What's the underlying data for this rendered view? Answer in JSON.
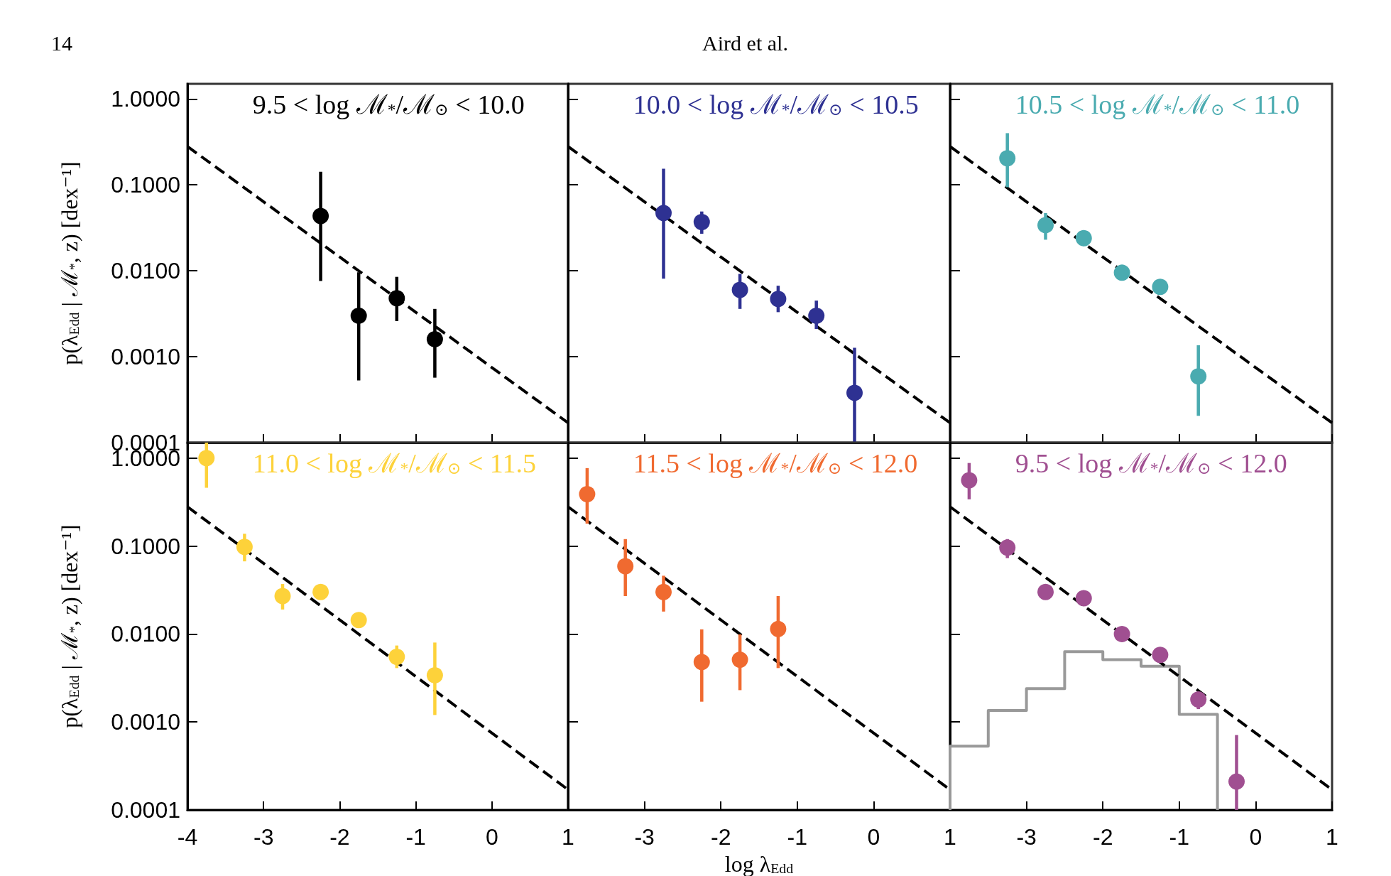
{
  "chart_data": [
    {
      "type": "scatter",
      "title": "9.5 < log ℳ$_{*}$/ℳ$_{⊙}$ < 10.0",
      "ylabel": "p(λ$_{Edd}$ | ℳ$_{*}$, z) [dex⁻¹]",
      "annotations": [
        "14",
        "Aird et al."
      ],
      "xlim": [
        -4,
        1
      ],
      "xticks": [
        -4,
        -3,
        -2,
        -1,
        0,
        1
      ],
      "ylim": [
        0.0001,
        1.5
      ],
      "yticks": [
        {
          "value": 1,
          "label": "1.0000"
        },
        {
          "value": 0.1,
          "label": "0.1000"
        },
        {
          "value": 0.01,
          "label": "0.0100"
        },
        {
          "value": 0.001,
          "label": "0.0010"
        },
        {
          "value": 0.0001,
          "label": "0.0001"
        }
      ],
      "log": "y",
      "grid": false,
      "marker": "circle",
      "tick_labels": "y",
      "series": [
        {
          "color": "#000000",
          "x": [
            -2.25,
            -1.75,
            -1.25,
            -0.75
          ],
          "values": [
            0.0435,
            0.003,
            0.0048,
            0.0016
          ],
          "errors": [
            [
              0.0076,
              0.142
            ],
            [
              0.00053,
              0.0096
            ],
            [
              0.0026,
              0.0085
            ],
            [
              0.00057,
              0.0036
            ]
          ]
        },
        {
          "type": "line",
          "color": "#000000",
          "line_style": "dashed",
          "marker": "none",
          "x": [
            -4,
            1
          ],
          "values": [
            0.28,
            0.00017
          ]
        }
      ]
    },
    {
      "type": "scatter",
      "title": "10.0 < log ℳ$_{*}$/ℳ$_{⊙}$ < 10.5",
      "xlim": [
        -4,
        1
      ],
      "xticks": [
        -4,
        -3,
        -2,
        -1,
        0,
        1
      ],
      "ylim": [
        0.0001,
        1.5
      ],
      "yticks": [
        1,
        0.1,
        0.01,
        0.001,
        0.0001
      ],
      "log": "y",
      "grid": false,
      "marker": "circle",
      "tick_labels": false,
      "series": [
        {
          "color": "#2e3192",
          "x": [
            -2.75,
            -2.25,
            -1.75,
            -1.25,
            -0.75,
            -0.25
          ],
          "values": [
            0.047,
            0.037,
            0.006,
            0.0047,
            0.003,
            0.00038
          ],
          "errors": [
            [
              0.0081,
              0.154
            ],
            [
              0.027,
              0.049
            ],
            [
              0.0036,
              0.0092
            ],
            [
              0.0033,
              0.0067
            ],
            [
              0.0021,
              0.0045
            ],
            [
              0.0001,
              0.00127
            ]
          ]
        },
        {
          "type": "line",
          "color": "#000000",
          "line_style": "dashed",
          "marker": "none",
          "x": [
            -4,
            1
          ],
          "values": [
            0.28,
            0.00017
          ]
        }
      ]
    },
    {
      "type": "scatter",
      "title": "10.5 < log ℳ$_{*}$/ℳ$_{⊙}$ < 11.0",
      "xlim": [
        -4,
        1
      ],
      "xticks": [
        -4,
        -3,
        -2,
        -1,
        0,
        1
      ],
      "ylim": [
        0.0001,
        1.5
      ],
      "yticks": [
        1,
        0.1,
        0.01,
        0.001,
        0.0001
      ],
      "log": "y",
      "grid": false,
      "marker": "circle",
      "tick_labels": false,
      "series": [
        {
          "color": "#4aabb0",
          "x": [
            -3.25,
            -2.75,
            -2.25,
            -1.75,
            -1.25,
            -0.75
          ],
          "values": [
            0.204,
            0.034,
            0.024,
            0.0095,
            0.0065,
            0.00059
          ],
          "errors": [
            [
              0.094,
              0.4
            ],
            [
              0.023,
              0.047
            ],
            null,
            null,
            null,
            [
              0.000205,
              0.00136
            ]
          ]
        },
        {
          "type": "line",
          "color": "#000000",
          "line_style": "dashed",
          "marker": "none",
          "x": [
            -4,
            1
          ],
          "values": [
            0.28,
            0.00017
          ]
        }
      ]
    },
    {
      "type": "scatter",
      "title": "11.0 < log ℳ$_{*}$/ℳ$_{⊙}$ < 11.5",
      "ylabel": "p(λ$_{Edd}$ | ℳ$_{*}$, z) [dex⁻¹]",
      "xlim": [
        -4,
        1
      ],
      "xticks": [
        -4,
        -3,
        -2,
        -1,
        0,
        1
      ],
      "ylim": [
        0.0001,
        1.5
      ],
      "yticks": [
        {
          "value": 1,
          "label": "1.0000"
        },
        {
          "value": 0.1,
          "label": "0.1000"
        },
        {
          "value": 0.01,
          "label": "0.0100"
        },
        {
          "value": 0.001,
          "label": "0.0010"
        },
        {
          "value": 0.0001,
          "label": "0.0001"
        }
      ],
      "log": "y",
      "grid": false,
      "marker": "circle",
      "series": [
        {
          "color": "#fdd23a",
          "x": [
            -3.75,
            -3.25,
            -2.75,
            -2.25,
            -1.75,
            -1.25,
            -0.75
          ],
          "values": [
            1.0,
            0.098,
            0.027,
            0.03,
            0.0144,
            0.0055,
            0.0034
          ],
          "errors": [
            [
              0.46,
              1.5
            ],
            [
              0.067,
              0.138
            ],
            [
              0.019,
              0.037
            ],
            null,
            null,
            [
              0.0041,
              0.0074
            ],
            [
              0.0012,
              0.008
            ]
          ]
        },
        {
          "type": "line",
          "color": "#000000",
          "line_style": "dashed",
          "marker": "none",
          "x": [
            -4,
            1
          ],
          "values": [
            0.28,
            0.00017
          ]
        }
      ]
    },
    {
      "type": "scatter",
      "title": "11.5 < log ℳ$_{*}$/ℳ$_{⊙}$ < 12.0",
      "xlabel": "log λ$_{Edd}$",
      "xlim": [
        -4,
        1
      ],
      "xticks": [
        {
          "value": -4,
          "label": null
        },
        -3,
        -2,
        -1,
        0,
        1
      ],
      "ylim": [
        0.0001,
        1.5
      ],
      "yticks": [
        1,
        0.1,
        0.01,
        0.001,
        0.0001
      ],
      "log": "y",
      "grid": false,
      "marker": "circle",
      "tick_labels": "x",
      "series": [
        {
          "color": "#f06a30",
          "x": [
            -3.75,
            -3.25,
            -2.75,
            -2.25,
            -1.75,
            -1.25
          ],
          "values": [
            0.39,
            0.059,
            0.03,
            0.0048,
            0.0051,
            0.0114
          ],
          "errors": [
            [
              0.18,
              0.77
            ],
            [
              0.027,
              0.12
            ],
            [
              0.018,
              0.046
            ],
            [
              0.0017,
              0.0113
            ],
            [
              0.0023,
              0.0099
            ],
            [
              0.0041,
              0.027
            ]
          ]
        },
        {
          "type": "line",
          "color": "#000000",
          "line_style": "dashed",
          "marker": "none",
          "x": [
            -4,
            1
          ],
          "values": [
            0.28,
            0.00017
          ]
        }
      ]
    },
    {
      "type": "scatter",
      "title": "9.5 < log ℳ$_{*}$/ℳ$_{⊙}$ < 12.0",
      "xlim": [
        -4,
        1
      ],
      "xticks": [
        {
          "value": -4,
          "label": null
        },
        -3,
        -2,
        -1,
        0,
        1
      ],
      "ylim": [
        0.0001,
        1.5
      ],
      "yticks": [
        1,
        0.1,
        0.01,
        0.001,
        0.0001
      ],
      "log": "y",
      "grid": false,
      "marker": "circle",
      "tick_labels": "x",
      "series": [
        {
          "color": "#a04f91",
          "x": [
            -3.75,
            -3.25,
            -2.75,
            -2.25,
            -1.75,
            -1.25,
            -0.75,
            -0.25
          ],
          "values": [
            0.56,
            0.096,
            0.03,
            0.0255,
            0.01,
            0.0058,
            0.0018,
            0.00021
          ],
          "errors": [
            [
              0.34,
              0.88
            ],
            [
              0.073,
              0.12
            ],
            null,
            null,
            null,
            null,
            [
              0.0014,
              0.0018
            ],
            [
              0.0001,
              0.00071
            ]
          ]
        },
        {
          "type": "histogram",
          "color": "#999999",
          "bins": [
            -4,
            -3.5,
            -3,
            -2.5,
            -2,
            -1.5,
            -1,
            -0.5
          ],
          "values": [
            0.00053,
            0.00135,
            0.0024,
            0.0063,
            0.0051,
            0.0043,
            0.00122
          ]
        },
        {
          "type": "line",
          "color": "#000000",
          "line_style": "dashed",
          "marker": "none",
          "x": [
            -4,
            1
          ],
          "values": [
            0.28,
            0.00017
          ]
        }
      ]
    }
  ]
}
